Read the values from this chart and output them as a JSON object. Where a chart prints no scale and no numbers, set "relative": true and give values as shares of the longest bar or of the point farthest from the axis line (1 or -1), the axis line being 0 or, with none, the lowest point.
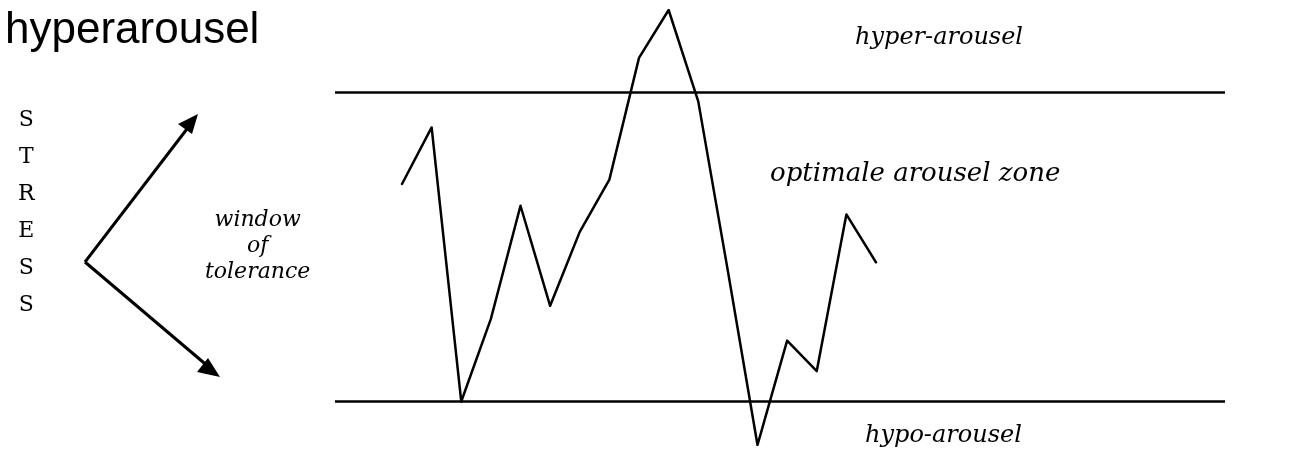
{
  "chart_data": {
    "type": "line",
    "title": "hyperarousel",
    "relative": true,
    "categories": [
      null,
      null,
      null,
      null,
      null,
      null,
      null,
      null,
      null,
      null,
      null,
      null,
      null,
      null,
      null,
      null,
      null,
      null,
      null
    ],
    "series": [
      {
        "color": "#000000",
        "values": [
          0.6,
          0.73,
          0.1,
          0.29,
          0.55,
          0.32,
          0.49,
          0.61,
          0.89,
          1.0,
          0.79,
          0.4,
          0,
          0.24,
          0.17,
          0.53,
          0.42,
          null,
          null
        ]
      }
    ],
    "ref_lines": [
      {
        "axis": "y",
        "value": 0.81,
        "color": "#000000"
      },
      {
        "axis": "y",
        "value": 0.1,
        "color": "#000000"
      }
    ],
    "annotations": [
      "hyper-arousel",
      "optimale arousel zone",
      "window of tolerance",
      "hypo-arousel",
      "STRESS"
    ],
    "marker": "none",
    "line_style": "solid"
  }
}
